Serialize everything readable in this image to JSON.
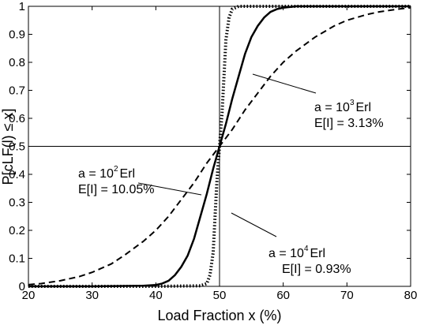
{
  "chart_data": {
    "type": "line",
    "title": "",
    "xlabel": "Load Fraction x (%)",
    "ylabel": "P[cLF(l) ≤ x]",
    "xlim": [
      20,
      80
    ],
    "ylim": [
      0,
      1
    ],
    "xticks": [
      "20",
      "30",
      "40",
      "50",
      "60",
      "70",
      "80"
    ],
    "yticks": [
      "0",
      "0.1",
      "0.2",
      "0.3",
      "0.4",
      "0.5",
      "0.6",
      "0.7",
      "0.8",
      "0.9",
      "1"
    ],
    "grid": false,
    "reference_lines": {
      "x": 50,
      "y": 0.5
    },
    "series": [
      {
        "style": "dashed",
        "x": [
          20,
          22,
          25,
          28,
          30,
          33,
          35,
          38,
          40,
          42,
          44,
          46,
          48,
          50,
          52,
          54,
          56,
          58,
          60,
          62,
          65,
          68,
          70,
          73,
          75,
          78,
          80
        ],
        "y": [
          0.006,
          0.01,
          0.02,
          0.035,
          0.05,
          0.08,
          0.11,
          0.16,
          0.2,
          0.25,
          0.31,
          0.37,
          0.44,
          0.5,
          0.56,
          0.63,
          0.69,
          0.75,
          0.8,
          0.84,
          0.89,
          0.93,
          0.95,
          0.97,
          0.98,
          0.99,
          0.995
        ]
      },
      {
        "style": "solid",
        "x": [
          20,
          30,
          38,
          40,
          41,
          42,
          43,
          44,
          45,
          46,
          47,
          48,
          49,
          50,
          51,
          52,
          53,
          54,
          55,
          56,
          57,
          58,
          59,
          60,
          62,
          70,
          80
        ],
        "y": [
          0,
          0,
          0.002,
          0.005,
          0.01,
          0.02,
          0.04,
          0.07,
          0.11,
          0.17,
          0.25,
          0.33,
          0.42,
          0.5,
          0.58,
          0.67,
          0.75,
          0.83,
          0.89,
          0.93,
          0.96,
          0.98,
          0.99,
          0.995,
          1.0,
          1.0,
          1.0
        ]
      },
      {
        "style": "dotted",
        "x": [
          20,
          40,
          47,
          48,
          48.5,
          49,
          49.3,
          49.6,
          50,
          50.4,
          50.7,
          51,
          51.5,
          52,
          53,
          60,
          80
        ],
        "y": [
          0,
          0,
          0.002,
          0.01,
          0.04,
          0.12,
          0.25,
          0.38,
          0.5,
          0.62,
          0.75,
          0.88,
          0.96,
          0.99,
          1.0,
          1.0,
          1.0
        ]
      }
    ],
    "annotations": [
      {
        "line1_base": "a = 10",
        "line1_exp": "3",
        "line1_unit": "Erl",
        "line2": "E[I] = 3.13%"
      },
      {
        "line1_base": "a = 10",
        "line1_exp": "2",
        "line1_unit": "Erl",
        "line2": "E[I] = 10.05%"
      },
      {
        "line1_base": "a = 10",
        "line1_exp": "4",
        "line1_unit": "Erl",
        "line2": "E[I] = 0.93%"
      }
    ]
  }
}
